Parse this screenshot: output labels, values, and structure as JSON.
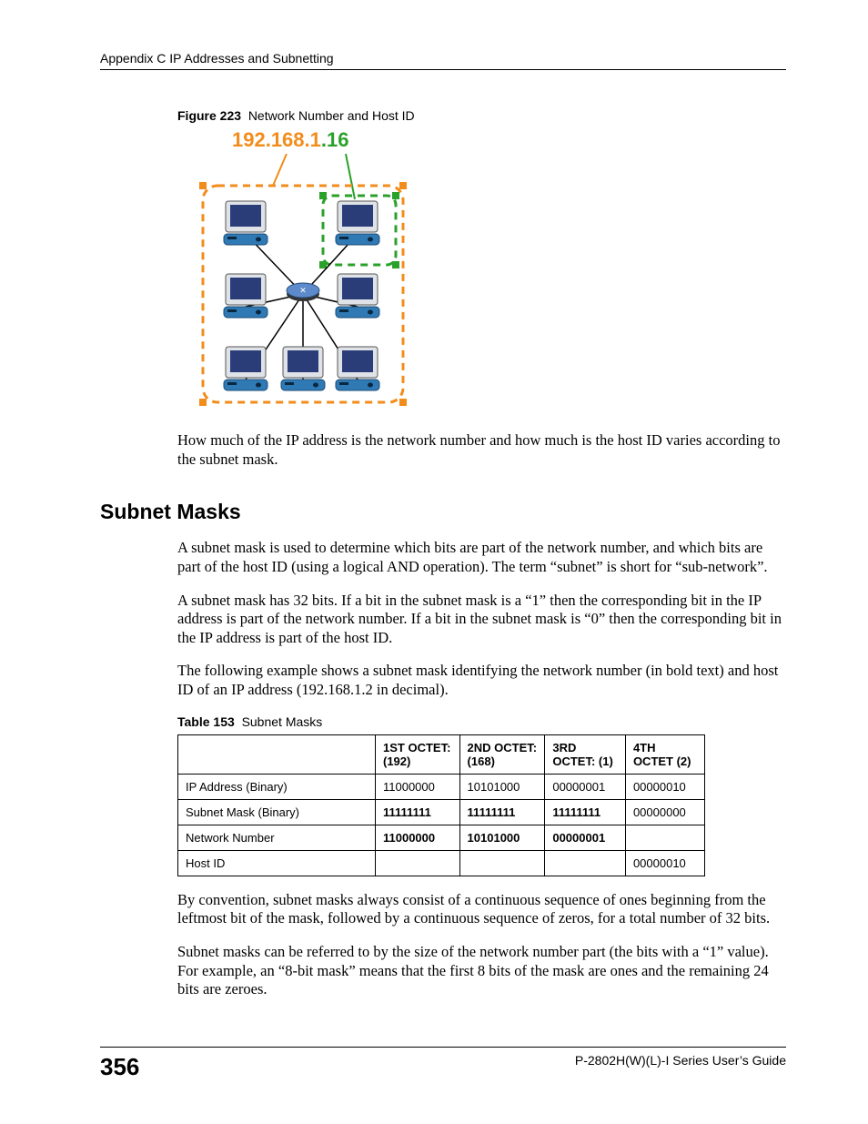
{
  "header": {
    "text": "Appendix C IP Addresses and Subnetting"
  },
  "figure": {
    "label": "Figure 223",
    "title": "Network Number and Host ID",
    "ip": {
      "network": "192.168.1",
      "dot": ".",
      "host": "16"
    },
    "colors": {
      "network": "#f28c1a",
      "host": "#2aa12a",
      "outer_dash": "#f28c1a",
      "inner_dash": "#2aa12a",
      "pc_body": "#dfe3e8",
      "pc_screen": "#2b3d78",
      "pc_base": "#2f79b5",
      "hub_body": "#5c8acb",
      "line": "#000000"
    }
  },
  "para1": "How much of the IP address is the network number and how much is the host ID varies according to the subnet mask.",
  "section": {
    "title": "Subnet Masks"
  },
  "para2": "A subnet mask is used to determine which bits are part of the network number, and which bits are part of the host ID (using a logical AND operation). The term “subnet” is short for “sub-network”.",
  "para3": "A subnet mask has 32 bits. If a bit in the subnet mask is a “1” then the corresponding bit in the IP address is part of the network number. If a bit in the subnet mask is “0” then the corresponding bit in the IP address is part of the host ID.",
  "para4": "The following example shows a subnet mask identifying the network number (in bold text) and host ID of an IP address (192.168.1.2 in decimal).",
  "table": {
    "label": "Table 153",
    "title": "Subnet Masks",
    "headers": [
      "",
      "1ST OCTET: (192)",
      "2ND OCTET: (168)",
      "3RD OCTET: (1)",
      "4TH OCTET (2)"
    ],
    "rows": [
      {
        "label": "IP Address (Binary)",
        "cells": [
          "11000000",
          "10101000",
          "00000001",
          "00000010"
        ],
        "bold": [
          false,
          false,
          false,
          false
        ]
      },
      {
        "label": "Subnet Mask (Binary)",
        "cells": [
          "11111111",
          "11111111",
          "11111111",
          "00000000"
        ],
        "bold": [
          true,
          true,
          true,
          false
        ]
      },
      {
        "label": "Network Number",
        "cells": [
          "11000000",
          "10101000",
          "00000001",
          ""
        ],
        "bold": [
          true,
          true,
          true,
          false
        ]
      },
      {
        "label": "Host ID",
        "cells": [
          "",
          "",
          "",
          "00000010"
        ],
        "bold": [
          false,
          false,
          false,
          false
        ]
      }
    ]
  },
  "para5": "By convention, subnet masks always consist of a continuous sequence of ones beginning from the leftmost bit of the mask, followed by a continuous sequence of zeros, for a total number of 32 bits.",
  "para6": "Subnet masks can be referred to by the size of the network number part (the bits with a “1” value). For example, an “8-bit mask” means that the first 8 bits of the mask are ones and the remaining 24 bits are zeroes.",
  "footer": {
    "page": "356",
    "guide": "P-2802H(W)(L)-I Series User’s Guide"
  }
}
